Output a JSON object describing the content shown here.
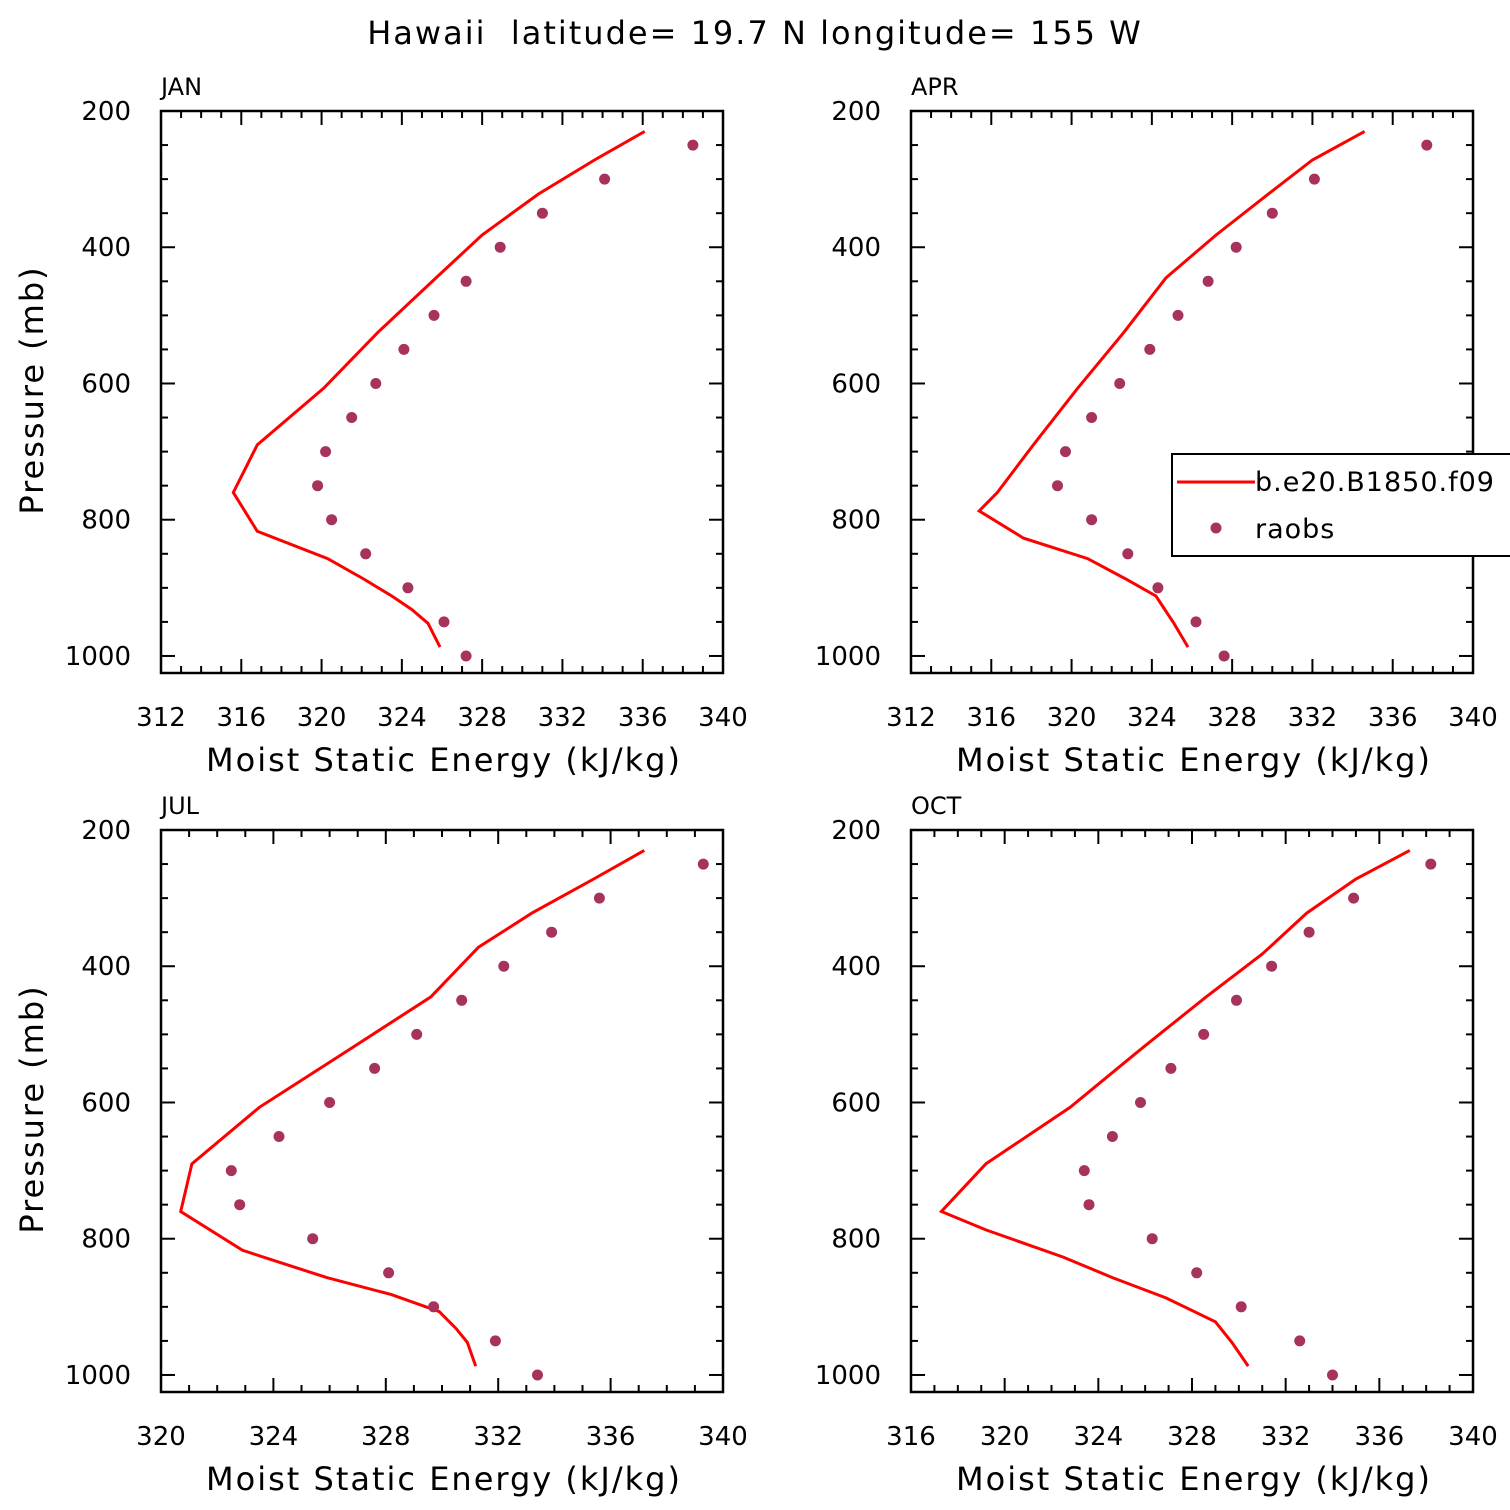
{
  "figure": {
    "title": "Hawaii  latitude= 19.7 N longitude= 155 W"
  },
  "colors": {
    "model_line": "#ff0000",
    "obs_marker": "#a8325e",
    "axis": "#000000"
  },
  "legend": {
    "entries": [
      {
        "label": "b.e20.B1850.f09",
        "kind": "line"
      },
      {
        "label": "raobs",
        "kind": "marker"
      }
    ]
  },
  "chart_data": [
    {
      "type": "line",
      "panel": "JAN",
      "xlabel": "Moist Static Energy (kJ/kg)",
      "ylabel": "Pressure (mb)",
      "xlim": [
        312,
        340
      ],
      "ylim": [
        1025,
        200
      ],
      "xticks": [
        312,
        316,
        320,
        324,
        328,
        332,
        336,
        340
      ],
      "yticks": [
        200,
        400,
        600,
        800,
        1000
      ],
      "series": [
        {
          "name": "b.e20.B1850.f09",
          "style": "line",
          "x": [
            336.1,
            333.6,
            330.8,
            328.0,
            325.7,
            322.8,
            320.1,
            316.8,
            315.6,
            316.8,
            320.3,
            322.1,
            323.5,
            324.5,
            325.3,
            325.9
          ],
          "y": [
            230,
            272,
            322,
            382,
            445,
            525,
            607,
            690,
            760,
            817,
            857,
            887,
            912,
            932,
            952,
            987
          ]
        },
        {
          "name": "raobs",
          "style": "marker",
          "x": [
            338.5,
            334.1,
            331.0,
            328.9,
            327.2,
            325.6,
            324.1,
            322.7,
            321.5,
            320.2,
            319.8,
            320.5,
            322.2,
            324.3,
            326.1,
            327.2
          ],
          "y": [
            250,
            300,
            350,
            400,
            450,
            500,
            550,
            600,
            650,
            700,
            750,
            800,
            850,
            900,
            950,
            1000
          ]
        }
      ]
    },
    {
      "type": "line",
      "panel": "APR",
      "xlabel": "Moist Static Energy (kJ/kg)",
      "ylabel": "",
      "xlim": [
        312,
        340
      ],
      "ylim": [
        1025,
        200
      ],
      "xticks": [
        312,
        316,
        320,
        324,
        328,
        332,
        336,
        340
      ],
      "yticks": [
        200,
        400,
        600,
        800,
        1000
      ],
      "series": [
        {
          "name": "b.e20.B1850.f09",
          "style": "line",
          "x": [
            334.6,
            332.0,
            329.8,
            327.2,
            324.7,
            322.6,
            320.3,
            318.1,
            316.3,
            315.4,
            317.6,
            320.8,
            322.7,
            324.2,
            325.1,
            325.8
          ],
          "y": [
            230,
            272,
            322,
            382,
            445,
            525,
            607,
            690,
            760,
            787,
            827,
            857,
            887,
            912,
            952,
            987
          ]
        },
        {
          "name": "raobs",
          "style": "marker",
          "x": [
            337.7,
            332.1,
            330.0,
            328.2,
            326.8,
            325.3,
            323.9,
            322.4,
            321.0,
            319.7,
            319.3,
            321.0,
            322.8,
            324.3,
            326.2,
            327.6
          ],
          "y": [
            250,
            300,
            350,
            400,
            450,
            500,
            550,
            600,
            650,
            700,
            750,
            800,
            850,
            900,
            950,
            1000
          ]
        }
      ]
    },
    {
      "type": "line",
      "panel": "JUL",
      "xlabel": "Moist Static Energy (kJ/kg)",
      "ylabel": "Pressure (mb)",
      "xlim": [
        320,
        340
      ],
      "ylim": [
        1025,
        200
      ],
      "xticks": [
        320,
        324,
        328,
        332,
        336,
        340
      ],
      "yticks": [
        200,
        400,
        600,
        800,
        1000
      ],
      "series": [
        {
          "name": "b.e20.B1850.f09",
          "style": "line",
          "x": [
            337.2,
            335.4,
            333.2,
            331.3,
            329.6,
            326.6,
            323.5,
            321.1,
            320.7,
            322.9,
            325.9,
            328.2,
            329.9,
            330.5,
            330.9,
            331.2
          ],
          "y": [
            230,
            272,
            322,
            372,
            445,
            525,
            607,
            690,
            760,
            817,
            857,
            882,
            907,
            932,
            952,
            987
          ]
        },
        {
          "name": "raobs",
          "style": "marker",
          "x": [
            339.3,
            335.6,
            333.9,
            332.2,
            330.7,
            329.1,
            327.6,
            326.0,
            324.2,
            322.5,
            322.8,
            325.4,
            328.1,
            329.7,
            331.9,
            333.4
          ],
          "y": [
            250,
            300,
            350,
            400,
            450,
            500,
            550,
            600,
            650,
            700,
            750,
            800,
            850,
            900,
            950,
            1000
          ]
        }
      ]
    },
    {
      "type": "line",
      "panel": "OCT",
      "xlabel": "Moist Static Energy (kJ/kg)",
      "ylabel": "",
      "xlim": [
        316,
        340
      ],
      "ylim": [
        1025,
        200
      ],
      "xticks": [
        316,
        320,
        324,
        328,
        332,
        336,
        340
      ],
      "yticks": [
        200,
        400,
        600,
        800,
        1000
      ],
      "series": [
        {
          "name": "b.e20.B1850.f09",
          "style": "line",
          "x": [
            337.3,
            335.0,
            332.9,
            331.0,
            328.6,
            325.7,
            322.8,
            319.2,
            317.3,
            319.2,
            322.5,
            324.6,
            326.9,
            329.0,
            329.7,
            330.4
          ],
          "y": [
            230,
            272,
            322,
            382,
            445,
            525,
            607,
            690,
            760,
            787,
            827,
            857,
            887,
            922,
            952,
            987
          ]
        },
        {
          "name": "raobs",
          "style": "marker",
          "x": [
            338.2,
            334.9,
            333.0,
            331.4,
            329.9,
            328.5,
            327.1,
            325.8,
            324.6,
            323.4,
            323.6,
            326.3,
            328.2,
            330.1,
            332.6,
            334.0
          ],
          "y": [
            250,
            300,
            350,
            400,
            450,
            500,
            550,
            600,
            650,
            700,
            750,
            800,
            850,
            900,
            950,
            1000
          ]
        }
      ]
    }
  ]
}
